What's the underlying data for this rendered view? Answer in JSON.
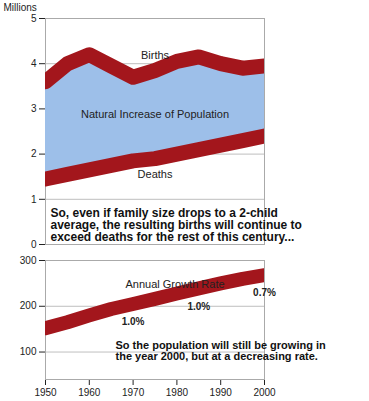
{
  "chart_data": [
    {
      "type": "area",
      "y_label": "Millions",
      "color": "#9dbfe9",
      "x": [
        1950,
        1955,
        1960,
        1965,
        1970,
        1975,
        1980,
        1985,
        1990,
        1995,
        2000
      ],
      "series": [
        {
          "name": "Births",
          "color": "#a3161c",
          "values": [
            3.6,
            4.0,
            4.2,
            3.95,
            3.7,
            3.85,
            4.05,
            4.15,
            4.0,
            3.9,
            3.95
          ]
        },
        {
          "name": "Deaths",
          "color": "#a3161c",
          "values": [
            1.45,
            1.55,
            1.65,
            1.75,
            1.85,
            1.9,
            2.0,
            2.1,
            2.2,
            2.3,
            2.4
          ]
        }
      ],
      "annotations": [
        {
          "x": 1975,
          "text": "Natural Increase of Population"
        },
        {
          "text": "So, even if family size drops to a 2-child average, the resulting births will continue to exceed deaths for the rest of this century..."
        }
      ],
      "xlim": [
        1950,
        2000
      ],
      "xticks": [
        1950,
        1960,
        1970,
        1980,
        1990,
        2000
      ],
      "ylim": [
        0,
        5
      ],
      "yticks": [
        0,
        1,
        2,
        3,
        4,
        5
      ],
      "grid": true,
      "tick_labels": "y"
    },
    {
      "type": "line",
      "title": "Annual Growth Rate",
      "x": [
        1950,
        1955,
        1960,
        1965,
        1970,
        1975,
        1980,
        1985,
        1990,
        1995,
        2000
      ],
      "series": [
        {
          "color": "#a3161c",
          "values": [
            152,
            165,
            180,
            194,
            205,
            216,
            228,
            239,
            250,
            260,
            268
          ]
        }
      ],
      "annotations": [
        {
          "x": 1970,
          "text": "1.0%"
        },
        {
          "x": 1985,
          "text": "1.0%"
        },
        {
          "x": 2000,
          "text": "0.7%"
        },
        {
          "text": "So the population will still be growing in the year 2000, but at a decreasing rate."
        }
      ],
      "xlim": [
        1950,
        2000
      ],
      "xticks": [
        1950,
        1960,
        1970,
        1980,
        1990,
        2000
      ],
      "ylim": [
        40,
        300
      ],
      "yticks": [
        100,
        200,
        300
      ],
      "grid": true
    }
  ]
}
